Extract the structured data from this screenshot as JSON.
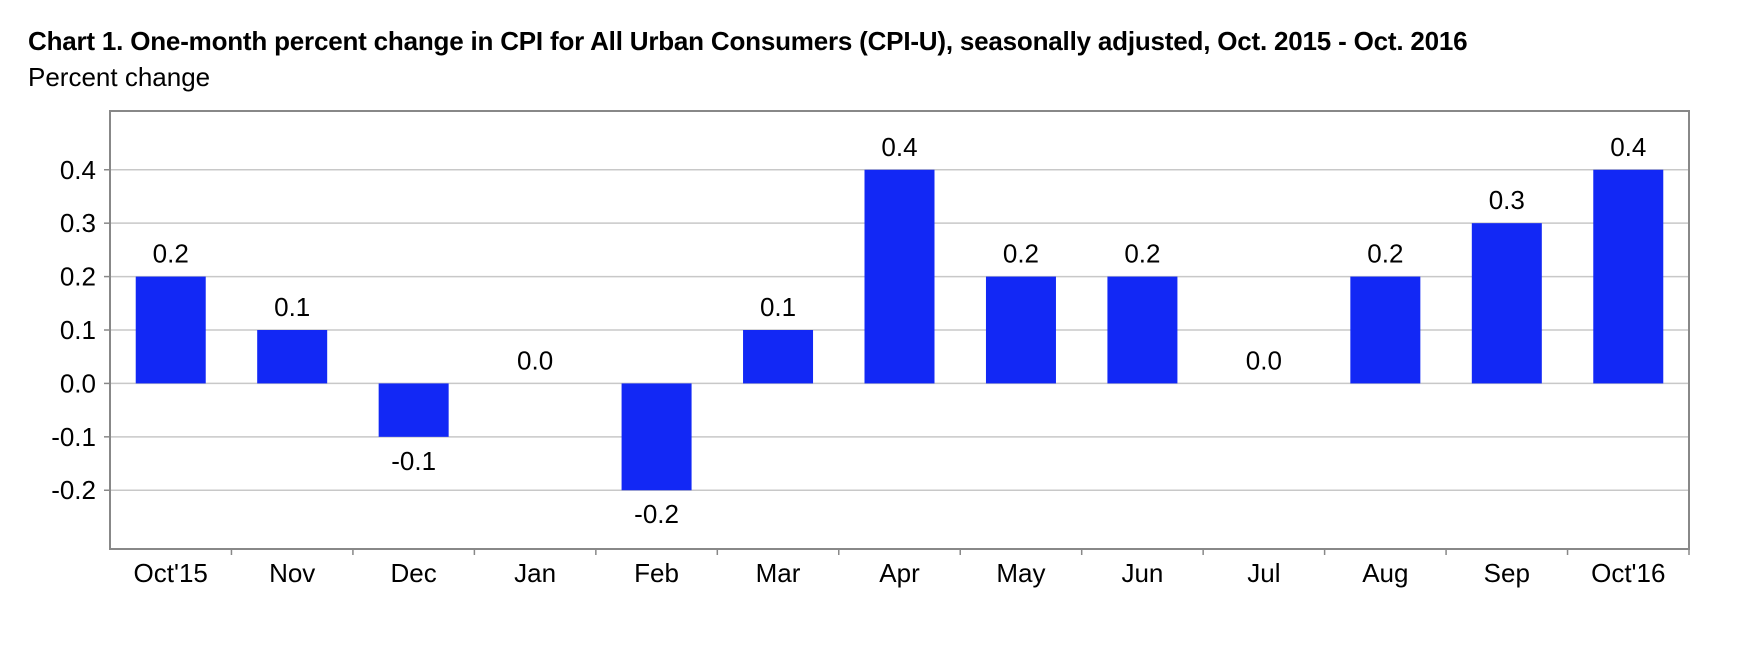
{
  "chart_data": {
    "type": "bar",
    "title": "Chart 1. One-month percent change in CPI for All Urban Consumers (CPI-U), seasonally adjusted, Oct. 2015 - Oct. 2016",
    "ylabel": "Percent change",
    "xlabel": "",
    "categories": [
      "Oct'15",
      "Nov",
      "Dec",
      "Jan",
      "Feb",
      "Mar",
      "Apr",
      "May",
      "Jun",
      "Jul",
      "Aug",
      "Sep",
      "Oct'16"
    ],
    "values": [
      0.2,
      0.1,
      -0.1,
      0.0,
      -0.2,
      0.1,
      0.4,
      0.2,
      0.2,
      0.0,
      0.2,
      0.3,
      0.4
    ],
    "data_labels": [
      "0.2",
      "0.1",
      "-0.1",
      "0.0",
      "-0.2",
      "0.1",
      "0.4",
      "0.2",
      "0.2",
      "0.0",
      "0.2",
      "0.3",
      "0.4"
    ],
    "yticks": [
      0.4,
      0.3,
      0.2,
      0.1,
      0.0,
      -0.1,
      -0.2
    ],
    "ytick_labels": [
      "0.4",
      "0.3",
      "0.2",
      "0.1",
      "0.0",
      "-0.1",
      "-0.2"
    ],
    "ylim": [
      -0.31,
      0.51
    ],
    "grid": true,
    "bar_color": "#1228f5",
    "grid_color": "#c8c8c8",
    "frame_color": "#888888"
  }
}
